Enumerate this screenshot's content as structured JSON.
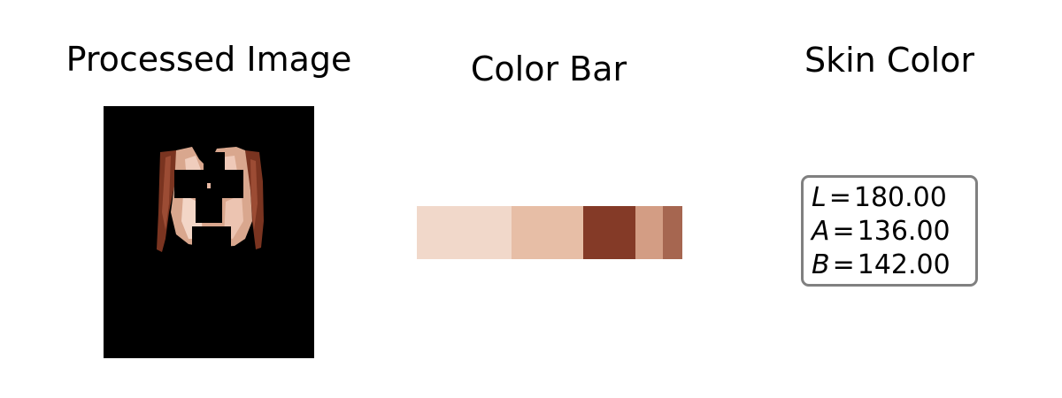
{
  "panels": {
    "processed_image": {
      "title": "Processed Image"
    },
    "color_bar": {
      "title": "Color Bar",
      "swatches": [
        {
          "color": "#f1d8ca",
          "fraction": 0.357
        },
        {
          "color": "#e7bea6",
          "fraction": 0.27
        },
        {
          "color": "#843a27",
          "fraction": 0.197
        },
        {
          "color": "#d39d84",
          "fraction": 0.103
        },
        {
          "color": "#a66650",
          "fraction": 0.073
        }
      ]
    },
    "skin_color": {
      "title": "Skin Color",
      "values": [
        {
          "var": "L",
          "value": "180.00"
        },
        {
          "var": "A",
          "value": "136.00"
        },
        {
          "var": "B",
          "value": "142.00"
        }
      ]
    }
  },
  "colors": {
    "background": "#ffffff",
    "mask": "#000000",
    "box_border": "#808080"
  }
}
